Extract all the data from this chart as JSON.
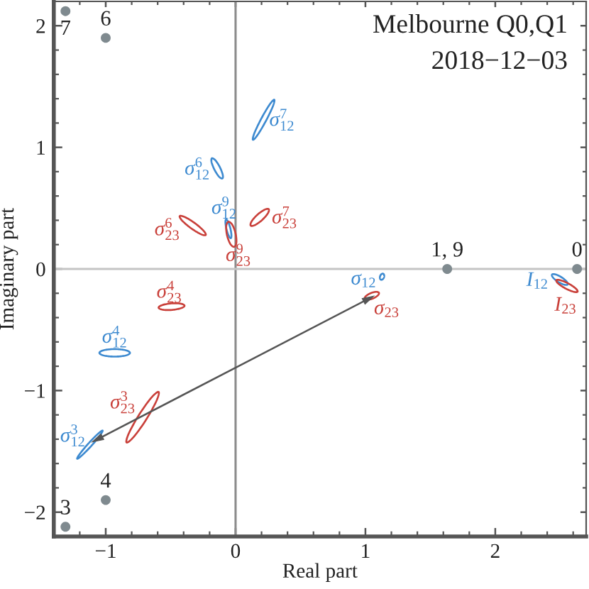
{
  "chart_data": {
    "type": "line",
    "title": "Melbourne Q0,Q1",
    "subtitle": "2018−12−03",
    "xlabel": "Real part",
    "ylabel": "Imaginary part",
    "xlim": [
      -1.4,
      2.7
    ],
    "ylim": [
      -2.2,
      2.2
    ],
    "xticks": [
      {
        "value": -1.2,
        "label": null
      },
      {
        "value": -1,
        "label": "−1"
      },
      {
        "value": -0.8,
        "label": null
      },
      {
        "value": -0.6,
        "label": null
      },
      {
        "value": -0.4,
        "label": null
      },
      {
        "value": -0.2,
        "label": null
      },
      0,
      {
        "value": 0.2,
        "label": null
      },
      {
        "value": 0.4,
        "label": null
      },
      {
        "value": 0.6,
        "label": null
      },
      {
        "value": 0.8,
        "label": null
      },
      1,
      {
        "value": 1.2,
        "label": null
      },
      {
        "value": 1.4,
        "label": null
      },
      {
        "value": 1.6,
        "label": null
      },
      {
        "value": 1.8,
        "label": null
      },
      2,
      {
        "value": 2.2,
        "label": null
      },
      {
        "value": 2.4,
        "label": null
      },
      {
        "value": 2.6,
        "label": null
      }
    ],
    "yticks": [
      {
        "value": -2,
        "label": "−2"
      },
      {
        "value": -1.8,
        "label": null
      },
      {
        "value": -1.6,
        "label": null
      },
      {
        "value": -1.4,
        "label": null
      },
      {
        "value": -1.2,
        "label": null
      },
      {
        "value": -1,
        "label": "−1"
      },
      {
        "value": -0.8,
        "label": null
      },
      {
        "value": -0.6,
        "label": null
      },
      {
        "value": -0.4,
        "label": null
      },
      {
        "value": -0.2,
        "label": null
      },
      0,
      {
        "value": 0.2,
        "label": null
      },
      {
        "value": 0.4,
        "label": null
      },
      {
        "value": 0.6,
        "label": null
      },
      {
        "value": 0.8,
        "label": null
      },
      1,
      {
        "value": 1.2,
        "label": null
      },
      {
        "value": 1.4,
        "label": null
      },
      {
        "value": 1.6,
        "label": null
      },
      {
        "value": 1.8,
        "label": null
      },
      2
    ],
    "ref_lines": [
      {
        "axis": "x",
        "value": 0,
        "color": "#8c8c8c"
      },
      {
        "axis": "y",
        "value": 0,
        "color": "#c4c4c4"
      }
    ],
    "series": [
      {
        "type": "scatter",
        "color": "#7f8a8f",
        "x": [
          -1.31,
          -1.0,
          -1.0,
          -1.31,
          1.63,
          2.63
        ],
        "values": [
          2.12,
          1.9,
          -1.9,
          -2.12,
          0,
          0
        ]
      },
      {
        "name": "σ$^{7}$$_{12}$",
        "color": "#3d8ad0",
        "x": [
          0.298,
          0.261,
          0.198,
          0.145,
          0.134,
          0.171,
          0.234,
          0.287,
          0.298
        ],
        "values": [
          1.392,
          1.35,
          1.236,
          1.117,
          1.062,
          1.104,
          1.218,
          1.337,
          1.392
        ]
      },
      {
        "name": "σ$^{6}$$_{12}$",
        "color": "#3d8ad0",
        "x": [
          -0.182,
          -0.185,
          -0.163,
          -0.129,
          -0.102,
          -0.099,
          -0.121,
          -0.155,
          -0.182
        ],
        "values": [
          0.91,
          0.879,
          0.817,
          0.761,
          0.744,
          0.775,
          0.837,
          0.893,
          0.91
        ]
      },
      {
        "name": "σ$^{9}$$_{12}$",
        "color": "#3d8ad0",
        "x": [
          -0.073,
          -0.078,
          -0.07,
          -0.053,
          -0.037,
          -0.032,
          -0.04,
          -0.057,
          -0.073
        ],
        "values": [
          0.407,
          0.382,
          0.326,
          0.273,
          0.253,
          0.278,
          0.334,
          0.387,
          0.407
        ]
      },
      {
        "name": "σ$^{9}$$_{23}$",
        "color": "#c9403a",
        "x": [
          -0.055,
          -0.072,
          -0.066,
          -0.041,
          -0.011,
          0.006,
          0.0,
          -0.025,
          -0.055
        ],
        "values": [
          0.388,
          0.353,
          0.278,
          0.207,
          0.182,
          0.217,
          0.292,
          0.363,
          0.388
        ]
      },
      {
        "name": "σ$^{7}$$_{23}$",
        "color": "#c9403a",
        "x": [
          0.255,
          0.221,
          0.166,
          0.123,
          0.117,
          0.151,
          0.206,
          0.249,
          0.255
        ],
        "values": [
          0.492,
          0.486,
          0.444,
          0.39,
          0.356,
          0.362,
          0.404,
          0.458,
          0.492
        ]
      },
      {
        "name": "σ$^{6}$$_{23}$",
        "color": "#c9403a",
        "x": [
          -0.23,
          -0.248,
          -0.314,
          -0.389,
          -0.43,
          -0.412,
          -0.346,
          -0.271,
          -0.23
        ],
        "values": [
          0.279,
          0.316,
          0.377,
          0.426,
          0.435,
          0.398,
          0.337,
          0.288,
          0.279
        ]
      },
      {
        "name": "σ$^{4}$$_{23}$",
        "color": "#c9403a",
        "x": [
          -0.393,
          -0.424,
          -0.495,
          -0.565,
          -0.593,
          -0.562,
          -0.491,
          -0.421,
          -0.393
        ],
        "values": [
          -0.302,
          -0.285,
          -0.283,
          -0.297,
          -0.318,
          -0.335,
          -0.337,
          -0.323,
          -0.302
        ]
      },
      {
        "name": "σ$^{4}$$_{12}$",
        "color": "#3d8ad0",
        "x": [
          -0.813,
          -0.848,
          -0.931,
          -1.014,
          -1.049,
          -1.014,
          -0.931,
          -0.848,
          -0.813
        ],
        "values": [
          -0.69,
          -0.668,
          -0.659,
          -0.668,
          -0.69,
          -0.712,
          -0.721,
          -0.712,
          -0.69
        ]
      },
      {
        "name": "σ$^{3}$$_{23}$",
        "color": "#c9403a",
        "x": [
          -0.593,
          -0.65,
          -0.745,
          -0.823,
          -0.839,
          -0.782,
          -0.687,
          -0.609,
          -0.593
        ],
        "values": [
          -1.011,
          -1.06,
          -1.202,
          -1.354,
          -1.427,
          -1.378,
          -1.236,
          -1.084,
          -1.011
        ]
      },
      {
        "name": "σ$^{3}$$_{12}$",
        "color": "#3d8ad0",
        "x": [
          -1.133,
          -1.199,
          -1.22,
          -1.184,
          -1.111,
          -1.045,
          -1.024,
          -1.06,
          -1.133
        ],
        "values": [
          -1.435,
          -1.52,
          -1.561,
          -1.534,
          -1.455,
          -1.37,
          -1.329,
          -1.356,
          -1.435
        ]
      },
      {
        "name": "σ$_{12}$",
        "color": "#3d8ad0",
        "x": [
          1.136,
          1.144,
          1.143,
          1.133,
          1.12,
          1.112,
          1.113,
          1.123,
          1.136
        ],
        "values": [
          -0.039,
          -0.05,
          -0.069,
          -0.085,
          -0.089,
          -0.078,
          -0.059,
          -0.043,
          -0.039
        ]
      },
      {
        "name": "σ$_{23}$",
        "color": "#c9403a",
        "x": [
          1.104,
          1.081,
          1.039,
          1.003,
          0.994,
          1.017,
          1.059,
          1.095,
          1.104
        ],
        "values": [
          -0.196,
          -0.188,
          -0.2,
          -0.224,
          -0.246,
          -0.254,
          -0.242,
          -0.218,
          -0.196
        ]
      },
      {
        "name": "I$_{12}$",
        "color": "#3d8ad0",
        "x": [
          2.437,
          2.445,
          2.484,
          2.53,
          2.557,
          2.549,
          2.51,
          2.464,
          2.437
        ],
        "values": [
          -0.046,
          -0.071,
          -0.106,
          -0.129,
          -0.128,
          -0.103,
          -0.068,
          -0.045,
          -0.046
        ]
      },
      {
        "name": "I$_{23}$",
        "color": "#c9403a",
        "x": [
          2.54,
          2.601,
          2.634,
          2.618,
          2.564,
          2.503,
          2.47,
          2.486,
          2.54
        ],
        "values": [
          -0.16,
          -0.187,
          -0.187,
          -0.159,
          -0.12,
          -0.093,
          -0.093,
          -0.121,
          -0.16
        ]
      },
      {
        "color": "#555555",
        "marker": "triangle",
        "x": [
          -1.065,
          1.025
        ],
        "values": [
          -1.401,
          -0.245
        ]
      }
    ],
    "annotations": [
      {
        "text": "7",
        "x": -1.31,
        "y": 2.12
      },
      {
        "text": "6",
        "x": -1.0,
        "y": 1.9
      },
      {
        "text": "4",
        "x": -1.0,
        "y": -1.9
      },
      {
        "text": "3",
        "x": -1.31,
        "y": -2.12
      },
      {
        "text": "1, 9",
        "x": 1.63,
        "y": 0
      },
      {
        "text": "0",
        "x": 2.63,
        "y": 0
      }
    ]
  }
}
